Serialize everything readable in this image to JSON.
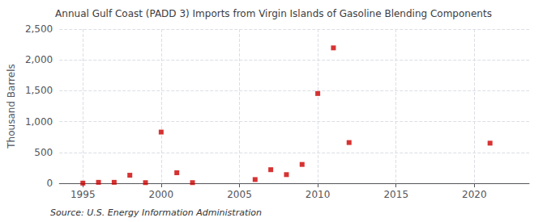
{
  "chart_data": {
    "type": "scatter",
    "title": "Annual Gulf Coast (PADD 3) Imports from Virgin Islands of Gasoline Blending Components",
    "ylabel": "Thousand Barrels",
    "annotation": "Source: U.S. Energy Information Administration",
    "x": [
      1995,
      1996,
      1997,
      1998,
      1999,
      2000,
      2001,
      2002,
      2006,
      2007,
      2008,
      2009,
      2010,
      2011,
      2012,
      2021
    ],
    "values": [
      2,
      15,
      15,
      130,
      10,
      830,
      170,
      10,
      60,
      220,
      140,
      305,
      1455,
      2195,
      660,
      650
    ],
    "color": "#cc0000",
    "marker": "square",
    "xlim": [
      1993.5,
      2023.5
    ],
    "xticks": [
      1995,
      2000,
      2005,
      2010,
      2015,
      2020
    ],
    "ylim": [
      0,
      2500
    ],
    "yticks": [
      0,
      500,
      {
        "value": 1000,
        "label": "1,000"
      },
      {
        "value": 1500,
        "label": "1,500"
      },
      {
        "value": 2000,
        "label": "2,000"
      },
      {
        "value": 2500,
        "label": "2,500"
      }
    ],
    "grid": true
  }
}
